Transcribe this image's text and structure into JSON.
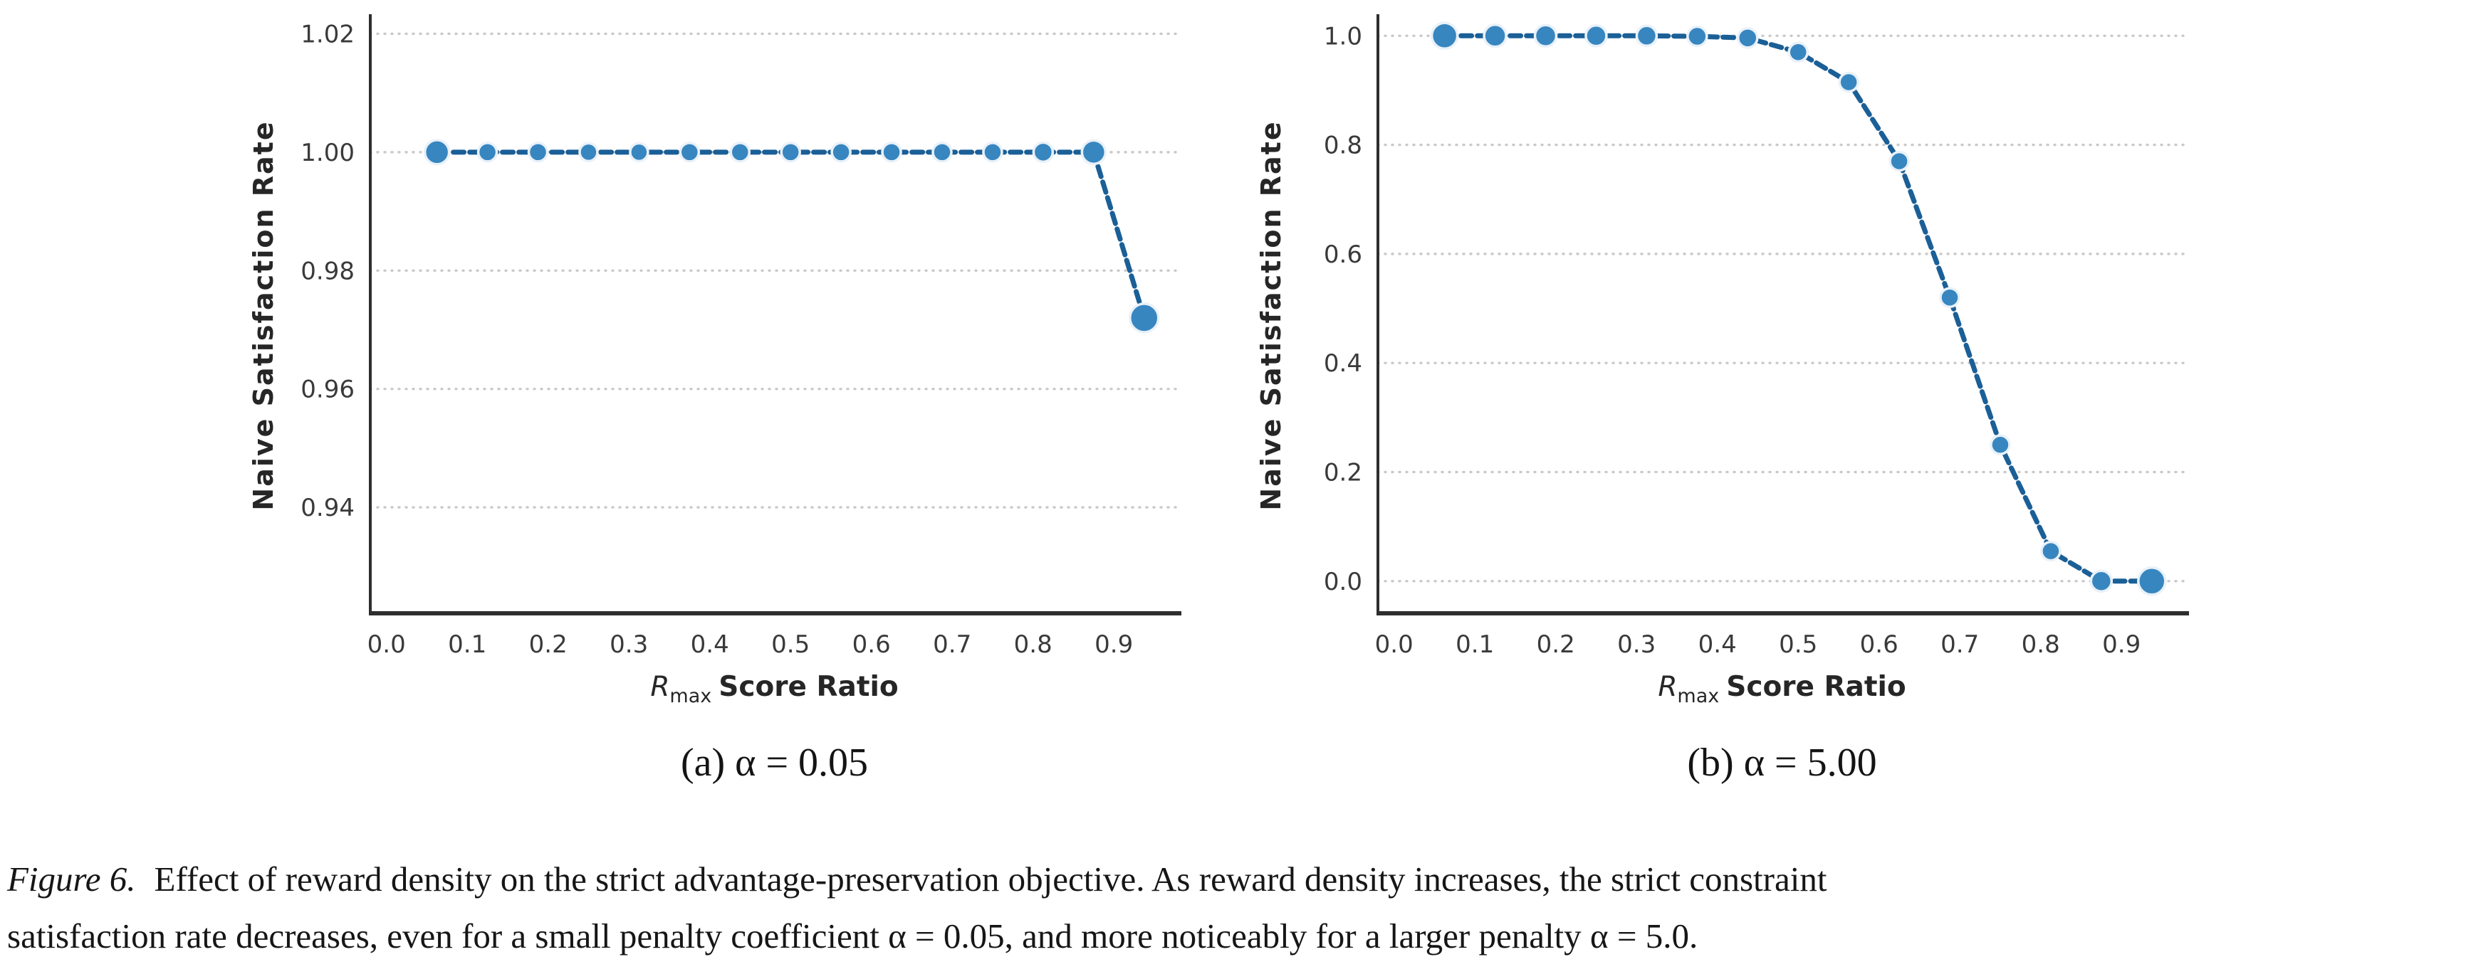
{
  "figure": {
    "caption_label": "Figure 6.",
    "caption_line1": "Effect of reward density on the strict advantage-preservation objective.  As reward density increases, the strict constraint",
    "caption_line2": "satisfaction rate decreases, even for a small penalty coefficient α = 0.05, and more noticeably for a larger penalty α = 5.0."
  },
  "colors": {
    "series_line": "#1b5f97",
    "marker_fill": "#3786c0",
    "marker_edge": "#e9f1f9",
    "grid": "#c9c9c9",
    "spine": "#2e2e2e",
    "tick_text": "#3a3a3a",
    "label_text": "#262626"
  },
  "chart_data": [
    {
      "type": "line",
      "panel_label": "(a) α = 0.05",
      "alpha_value": "0.05",
      "ylabel": "Naive Satisfaction Rate",
      "xlabel": {
        "math_base": "R",
        "math_sub": "max",
        "text": "Score Ratio"
      },
      "x": [
        0.0625,
        0.125,
        0.1875,
        0.25,
        0.3125,
        0.375,
        0.4375,
        0.5,
        0.5625,
        0.625,
        0.6875,
        0.75,
        0.8125,
        0.875,
        0.9375
      ],
      "y": [
        1.0,
        1.0,
        1.0,
        1.0,
        1.0,
        1.0,
        1.0,
        1.0,
        1.0,
        1.0,
        1.0,
        1.0,
        1.0,
        1.0,
        0.972
      ],
      "marker_radii": [
        17,
        13,
        13,
        12.5,
        12.5,
        13,
        13,
        13,
        13,
        13,
        13,
        13,
        13.5,
        16.5,
        20
      ],
      "xtick_values": [
        0.0,
        0.1,
        0.2,
        0.3,
        0.4,
        0.5,
        0.6,
        0.7,
        0.8,
        0.9
      ],
      "xtick_labels": [
        "0.0",
        "0.1",
        "0.2",
        "0.3",
        "0.4",
        "0.5",
        "0.6",
        "0.7",
        "0.8",
        "0.9"
      ],
      "ytick_values": [
        1.02,
        1.0,
        0.98,
        0.96,
        0.94
      ],
      "ytick_labels": [
        "1.02",
        "1.00",
        "0.98",
        "0.96",
        "0.94"
      ],
      "xlim": [
        -0.02,
        0.98
      ],
      "ylim": [
        0.9221,
        1.0227
      ],
      "grid": "horizontal-dotted",
      "legend": "none"
    },
    {
      "type": "line",
      "panel_label": "(b) α = 5.00",
      "alpha_value": "5.00",
      "ylabel": "Naive Satisfaction Rate",
      "xlabel": {
        "math_base": "R",
        "math_sub": "max",
        "text": "Score Ratio"
      },
      "x": [
        0.0625,
        0.125,
        0.1875,
        0.25,
        0.3125,
        0.375,
        0.4375,
        0.5,
        0.5625,
        0.625,
        0.6875,
        0.75,
        0.8125,
        0.875,
        0.9375
      ],
      "y": [
        1.0,
        1.0,
        1.0,
        1.0,
        1.0,
        0.999,
        0.996,
        0.97,
        0.915,
        0.77,
        0.52,
        0.25,
        0.055,
        0.0,
        0.0
      ],
      "marker_radii": [
        18,
        15.5,
        15,
        14.5,
        14,
        13.5,
        13.5,
        13,
        13,
        13,
        13,
        13,
        13,
        14.5,
        19
      ],
      "xtick_values": [
        0.0,
        0.1,
        0.2,
        0.3,
        0.4,
        0.5,
        0.6,
        0.7,
        0.8,
        0.9
      ],
      "xtick_labels": [
        "0.0",
        "0.1",
        "0.2",
        "0.3",
        "0.4",
        "0.5",
        "0.6",
        "0.7",
        "0.8",
        "0.9"
      ],
      "ytick_values": [
        1.0,
        0.8,
        0.6,
        0.4,
        0.2,
        0.0
      ],
      "ytick_labels": [
        "1.0",
        "0.8",
        "0.6",
        "0.4",
        "0.2",
        "0.0"
      ],
      "xlim": [
        -0.02,
        0.98
      ],
      "ylim": [
        -0.059,
        1.033
      ],
      "grid": "horizontal-dotted",
      "legend": "none"
    }
  ]
}
